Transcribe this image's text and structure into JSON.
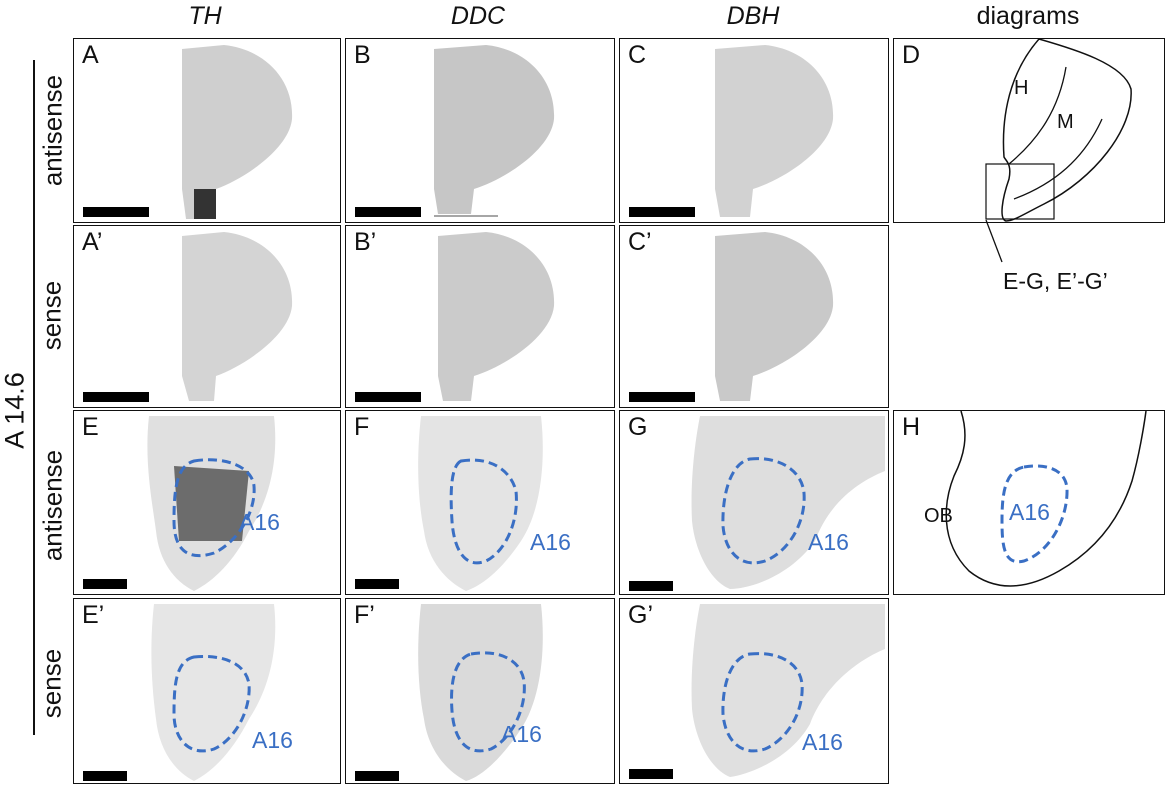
{
  "columns": {
    "th": "TH",
    "ddc": "DDC",
    "dbh": "DBH",
    "diagrams": "diagrams"
  },
  "side_label": "A 14.6",
  "rows": {
    "r1": "antisense",
    "r2": "sense",
    "r3": "antisense",
    "r4": "sense"
  },
  "panels": {
    "A": "A",
    "B": "B",
    "C": "C",
    "D": "D",
    "A2": "A’",
    "B2": "B’",
    "C2": "C’",
    "E": "E",
    "F": "F",
    "G": "G",
    "H": "H",
    "E2": "E’",
    "F2": "F’",
    "G2": "G’"
  },
  "region_label": "A16",
  "diagram": {
    "h": "H",
    "m": "M",
    "ob": "OB",
    "a16": "A16",
    "callout": "E-G, E’-G’"
  },
  "colors": {
    "dashed_outline": "#3a6fc4",
    "tissue": "#c9c9c9"
  }
}
